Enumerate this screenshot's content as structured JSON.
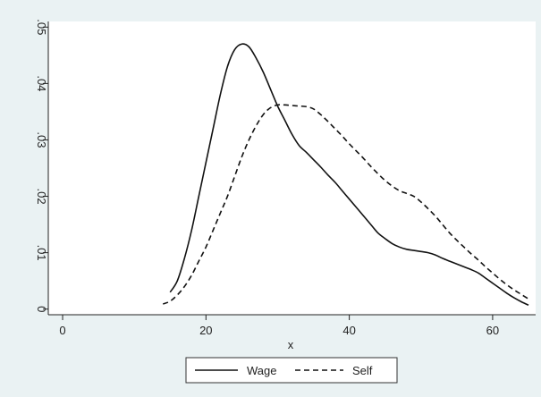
{
  "chart_data": {
    "type": "line",
    "title": "",
    "xlabel": "x",
    "ylabel": "",
    "xlim": [
      -2,
      66
    ],
    "ylim": [
      -0.001,
      0.051
    ],
    "xticks": [
      0,
      20,
      40,
      60
    ],
    "xtick_labels": [
      "0",
      "20",
      "40",
      "60"
    ],
    "yticks": [
      0,
      0.01,
      0.02,
      0.03,
      0.04,
      0.05
    ],
    "ytick_labels": [
      "0",
      ".01",
      ".02",
      ".03",
      ".04",
      ".05"
    ],
    "grid": false,
    "legend": {
      "position": "bottom",
      "entries": [
        "Wage",
        "Self"
      ]
    },
    "series": [
      {
        "name": "Wage",
        "line_style": "solid",
        "color": "#111111",
        "x": [
          15,
          16,
          17,
          18,
          19,
          20,
          21,
          22,
          23,
          24,
          25,
          26,
          27,
          28,
          29,
          30,
          31,
          32,
          33,
          34,
          35,
          36,
          37,
          38,
          39,
          40,
          41,
          42,
          43,
          44,
          45,
          46,
          47,
          48,
          49,
          50,
          51,
          52,
          53,
          54,
          55,
          56,
          57,
          58,
          59,
          60,
          61,
          62,
          63,
          64,
          65
        ],
        "values": [
          0.003,
          0.005,
          0.009,
          0.014,
          0.02,
          0.026,
          0.032,
          0.038,
          0.043,
          0.046,
          0.047,
          0.0465,
          0.0445,
          0.042,
          0.039,
          0.036,
          0.0335,
          0.031,
          0.029,
          0.0278,
          0.0265,
          0.0252,
          0.0238,
          0.0225,
          0.021,
          0.0195,
          0.018,
          0.0165,
          0.015,
          0.0135,
          0.0125,
          0.0116,
          0.011,
          0.0106,
          0.0104,
          0.0102,
          0.01,
          0.0096,
          0.009,
          0.0085,
          0.008,
          0.0075,
          0.007,
          0.0064,
          0.0055,
          0.0046,
          0.0037,
          0.0028,
          0.002,
          0.0013,
          0.0007
        ]
      },
      {
        "name": "Self",
        "line_style": "dashed",
        "color": "#111111",
        "x": [
          14,
          15,
          16,
          17,
          18,
          19,
          20,
          21,
          22,
          23,
          24,
          25,
          26,
          27,
          28,
          29,
          30,
          31,
          32,
          33,
          34,
          35,
          36,
          37,
          38,
          39,
          40,
          41,
          42,
          43,
          44,
          45,
          46,
          47,
          48,
          49,
          50,
          51,
          52,
          53,
          54,
          55,
          56,
          57,
          58,
          59,
          60,
          61,
          62,
          63,
          64,
          65
        ],
        "values": [
          0.0009,
          0.0014,
          0.0025,
          0.004,
          0.006,
          0.0085,
          0.011,
          0.014,
          0.017,
          0.02,
          0.0235,
          0.027,
          0.03,
          0.0325,
          0.0345,
          0.0357,
          0.0362,
          0.0362,
          0.0361,
          0.036,
          0.0359,
          0.0355,
          0.0345,
          0.0333,
          0.032,
          0.0307,
          0.0293,
          0.028,
          0.0267,
          0.0253,
          0.024,
          0.0228,
          0.0218,
          0.021,
          0.0205,
          0.02,
          0.019,
          0.0178,
          0.0165,
          0.015,
          0.0135,
          0.0122,
          0.011,
          0.0098,
          0.0087,
          0.0075,
          0.0064,
          0.0053,
          0.0043,
          0.0034,
          0.0026,
          0.0018
        ]
      }
    ]
  }
}
